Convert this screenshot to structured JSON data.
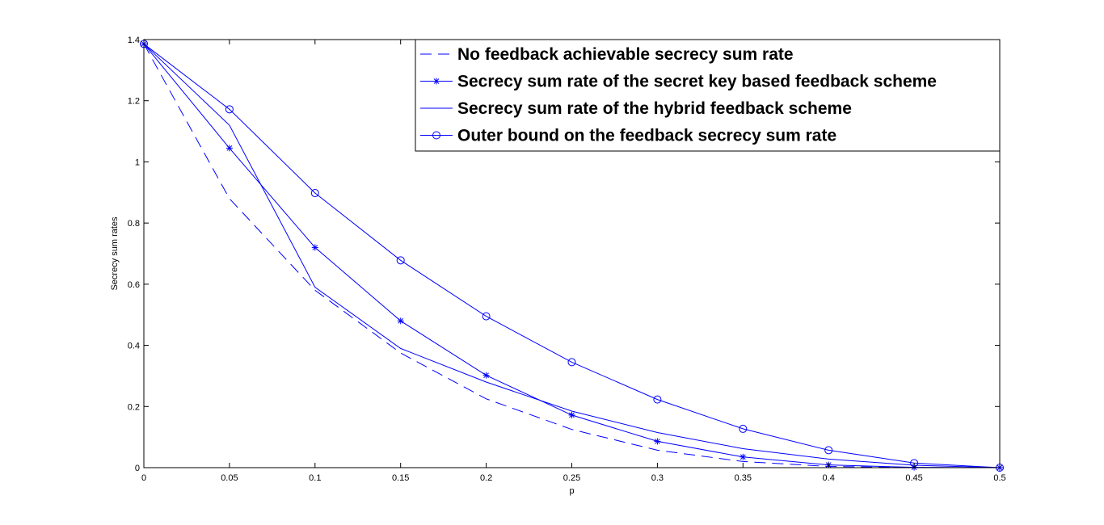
{
  "chart_data": {
    "type": "line",
    "xlabel": "p",
    "ylabel": "Secrecy sum rates",
    "xlim": [
      0,
      0.5
    ],
    "ylim": [
      0,
      1.4
    ],
    "x": [
      0,
      0.05,
      0.1,
      0.15,
      0.2,
      0.25,
      0.3,
      0.35,
      0.4,
      0.45,
      0.5
    ],
    "xticks": [
      "0",
      "0.05",
      "0.1",
      "0.15",
      "0.2",
      "0.25",
      "0.3",
      "0.35",
      "0.4",
      "0.45",
      "0.5"
    ],
    "yticks": [
      "0",
      "0.2",
      "0.4",
      "0.6",
      "0.8",
      "1",
      "1.2",
      "1.4"
    ],
    "legend_position": "top-right",
    "grid": false,
    "line_color": "#0000ff",
    "series": [
      {
        "name": "No feedback achievable secrecy sum rate",
        "style": "dashed",
        "marker": "none",
        "values": [
          1.386,
          0.88,
          0.58,
          0.375,
          0.225,
          0.125,
          0.057,
          0.02,
          0.004,
          0.0003,
          0
        ]
      },
      {
        "name": "Secrecy sum rate of the secret key based feedback scheme",
        "style": "solid",
        "marker": "star",
        "values": [
          1.386,
          1.045,
          0.72,
          0.48,
          0.302,
          0.172,
          0.086,
          0.035,
          0.009,
          0.001,
          0
        ]
      },
      {
        "name": "Secrecy sum rate of the hybrid feedback scheme",
        "style": "solid",
        "marker": "none",
        "values": [
          1.386,
          1.12,
          0.59,
          0.39,
          0.28,
          0.185,
          0.115,
          0.062,
          0.028,
          0.008,
          0
        ]
      },
      {
        "name": "Outer bound on the feedback secrecy sum rate",
        "style": "solid",
        "marker": "circle",
        "values": [
          1.386,
          1.172,
          0.898,
          0.678,
          0.495,
          0.345,
          0.223,
          0.127,
          0.057,
          0.015,
          0
        ]
      }
    ]
  }
}
